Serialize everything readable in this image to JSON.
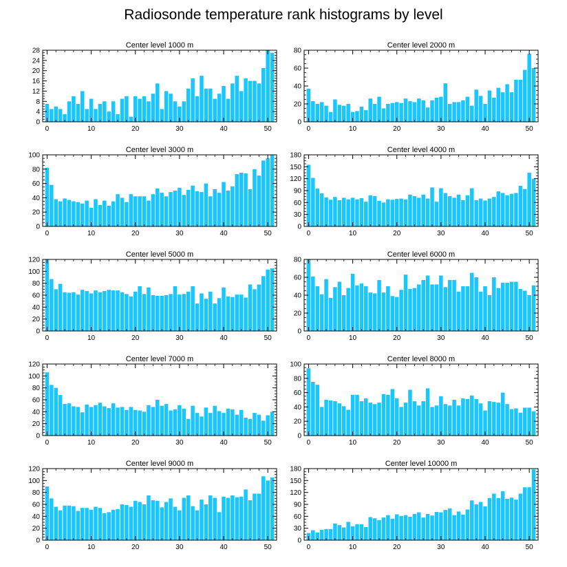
{
  "figure": {
    "title": "Radiosonde temperature rank histograms by level",
    "bar_color": "#1ac6fb",
    "axis_color": "#000000"
  },
  "chart_data": [
    {
      "type": "bar",
      "title": "Center level 1000 m",
      "xlim": [
        -1,
        52
      ],
      "ylim": [
        0,
        28
      ],
      "xticks": [
        0,
        10,
        20,
        30,
        40,
        50
      ],
      "yticks": [
        0,
        4,
        8,
        12,
        16,
        20,
        24,
        28
      ],
      "values": [
        7,
        5,
        6,
        5,
        3,
        8,
        10,
        7,
        12,
        5,
        9,
        5,
        7,
        8,
        4,
        8,
        3,
        9,
        10,
        2,
        10,
        9,
        10,
        8,
        11,
        15,
        5,
        12,
        11,
        8,
        6,
        8,
        13,
        17,
        10,
        18,
        13,
        13,
        9,
        11,
        14,
        9,
        15,
        18,
        12,
        17,
        16,
        16,
        15,
        21,
        28,
        27
      ]
    },
    {
      "type": "bar",
      "title": "Center level 2000 m",
      "xlim": [
        -1,
        52
      ],
      "ylim": [
        0,
        80
      ],
      "xticks": [
        0,
        10,
        20,
        30,
        40,
        50
      ],
      "yticks": [
        0,
        20,
        40,
        60,
        80
      ],
      "values": [
        37,
        23,
        20,
        22,
        18,
        11,
        25,
        19,
        18,
        20,
        11,
        12,
        17,
        13,
        26,
        20,
        28,
        15,
        20,
        21,
        22,
        21,
        26,
        23,
        22,
        26,
        24,
        16,
        24,
        27,
        28,
        43,
        20,
        22,
        22,
        24,
        28,
        18,
        36,
        29,
        20,
        35,
        27,
        38,
        33,
        42,
        33,
        47,
        47,
        58,
        76,
        60
      ]
    },
    {
      "type": "bar",
      "title": "Center level 3000 m",
      "xlim": [
        -1,
        52
      ],
      "ylim": [
        0,
        100
      ],
      "xticks": [
        0,
        10,
        20,
        30,
        40,
        50
      ],
      "yticks": [
        0,
        20,
        40,
        60,
        80,
        100
      ],
      "values": [
        82,
        58,
        38,
        35,
        39,
        37,
        35,
        34,
        32,
        36,
        26,
        38,
        30,
        36,
        29,
        35,
        45,
        40,
        34,
        45,
        42,
        42,
        42,
        36,
        45,
        53,
        47,
        42,
        48,
        50,
        54,
        44,
        51,
        57,
        49,
        48,
        60,
        42,
        52,
        47,
        62,
        50,
        56,
        73,
        75,
        74,
        52,
        80,
        71,
        92,
        95,
        100
      ]
    },
    {
      "type": "bar",
      "title": "Center level 4000 m",
      "xlim": [
        -1,
        52
      ],
      "ylim": [
        0,
        180
      ],
      "xticks": [
        0,
        10,
        20,
        30,
        40,
        50
      ],
      "yticks": [
        0,
        30,
        60,
        90,
        120,
        150,
        180
      ],
      "values": [
        155,
        122,
        95,
        83,
        73,
        67,
        74,
        66,
        72,
        68,
        72,
        68,
        71,
        62,
        78,
        76,
        64,
        60,
        68,
        67,
        69,
        70,
        68,
        80,
        76,
        72,
        80,
        70,
        98,
        62,
        96,
        84,
        76,
        72,
        80,
        66,
        78,
        96,
        66,
        70,
        65,
        70,
        74,
        88,
        84,
        78,
        82,
        84,
        102,
        94,
        135,
        120
      ]
    },
    {
      "type": "bar",
      "title": "Center level 5000 m",
      "xlim": [
        -1,
        52
      ],
      "ylim": [
        0,
        120
      ],
      "xticks": [
        0,
        10,
        20,
        30,
        40,
        50
      ],
      "yticks": [
        0,
        20,
        40,
        60,
        80,
        100,
        120
      ],
      "values": [
        120,
        87,
        70,
        79,
        65,
        64,
        65,
        61,
        69,
        67,
        63,
        68,
        65,
        67,
        69,
        68,
        68,
        65,
        62,
        58,
        66,
        75,
        62,
        73,
        60,
        59,
        59,
        60,
        62,
        75,
        61,
        62,
        66,
        75,
        46,
        63,
        54,
        66,
        46,
        55,
        73,
        58,
        57,
        61,
        61,
        56,
        78,
        70,
        78,
        92,
        103,
        105
      ]
    },
    {
      "type": "bar",
      "title": "Center level 6000 m",
      "xlim": [
        -1,
        52
      ],
      "ylim": [
        0,
        80
      ],
      "xticks": [
        0,
        10,
        20,
        30,
        40,
        50
      ],
      "yticks": [
        0,
        20,
        40,
        60,
        80
      ],
      "values": [
        80,
        61,
        50,
        41,
        58,
        37,
        49,
        55,
        40,
        48,
        64,
        51,
        53,
        50,
        43,
        42,
        57,
        43,
        50,
        39,
        38,
        46,
        63,
        47,
        48,
        52,
        57,
        62,
        52,
        52,
        62,
        49,
        57,
        57,
        44,
        50,
        50,
        65,
        60,
        44,
        50,
        40,
        60,
        48,
        54,
        54,
        55,
        55,
        47,
        45,
        40,
        51
      ]
    },
    {
      "type": "bar",
      "title": "Center level 7000 m",
      "xlim": [
        -1,
        52
      ],
      "ylim": [
        0,
        120
      ],
      "xticks": [
        0,
        10,
        20,
        30,
        40,
        50
      ],
      "yticks": [
        0,
        20,
        40,
        60,
        80,
        100,
        120
      ],
      "values": [
        106,
        85,
        80,
        68,
        53,
        54,
        49,
        48,
        39,
        52,
        48,
        51,
        55,
        49,
        46,
        54,
        47,
        48,
        43,
        48,
        43,
        42,
        40,
        51,
        48,
        60,
        50,
        53,
        42,
        44,
        51,
        45,
        28,
        50,
        38,
        32,
        47,
        38,
        50,
        41,
        38,
        45,
        44,
        35,
        43,
        30,
        28,
        38,
        35,
        25,
        34,
        40
      ]
    },
    {
      "type": "bar",
      "title": "Center level 8000 m",
      "xlim": [
        -1,
        52
      ],
      "ylim": [
        0,
        100
      ],
      "xticks": [
        0,
        10,
        20,
        30,
        40,
        50
      ],
      "yticks": [
        0,
        20,
        40,
        60,
        80,
        100
      ],
      "values": [
        94,
        75,
        71,
        40,
        50,
        49,
        48,
        45,
        41,
        36,
        57,
        57,
        48,
        52,
        46,
        44,
        46,
        58,
        57,
        65,
        52,
        40,
        46,
        64,
        48,
        42,
        48,
        66,
        40,
        42,
        55,
        44,
        42,
        50,
        42,
        52,
        51,
        56,
        51,
        45,
        35,
        48,
        47,
        46,
        60,
        44,
        37,
        38,
        32,
        39,
        39,
        34
      ]
    },
    {
      "type": "bar",
      "title": "Center level 9000 m",
      "xlim": [
        -1,
        52
      ],
      "ylim": [
        0,
        120
      ],
      "xticks": [
        0,
        10,
        20,
        30,
        40,
        50
      ],
      "yticks": [
        0,
        20,
        40,
        60,
        80,
        100,
        120
      ],
      "values": [
        90,
        70,
        56,
        50,
        58,
        58,
        57,
        49,
        54,
        54,
        51,
        56,
        54,
        45,
        47,
        51,
        52,
        60,
        59,
        56,
        66,
        64,
        60,
        75,
        67,
        66,
        55,
        64,
        70,
        56,
        50,
        71,
        75,
        57,
        50,
        68,
        60,
        75,
        71,
        47,
        73,
        71,
        75,
        72,
        73,
        85,
        67,
        78,
        78,
        107,
        100,
        105
      ]
    },
    {
      "type": "bar",
      "title": "Center level 10000 m",
      "xlim": [
        -1,
        52
      ],
      "ylim": [
        0,
        180
      ],
      "xticks": [
        0,
        10,
        20,
        30,
        40,
        50
      ],
      "yticks": [
        0,
        30,
        60,
        90,
        120,
        150,
        180
      ],
      "values": [
        18,
        25,
        19,
        26,
        28,
        28,
        42,
        38,
        32,
        46,
        35,
        40,
        40,
        33,
        58,
        55,
        50,
        57,
        63,
        54,
        65,
        61,
        63,
        59,
        66,
        70,
        57,
        66,
        62,
        71,
        70,
        76,
        80,
        63,
        72,
        64,
        77,
        100,
        90,
        96,
        85,
        106,
        117,
        106,
        123,
        104,
        107,
        102,
        117,
        133,
        133,
        178
      ]
    }
  ]
}
